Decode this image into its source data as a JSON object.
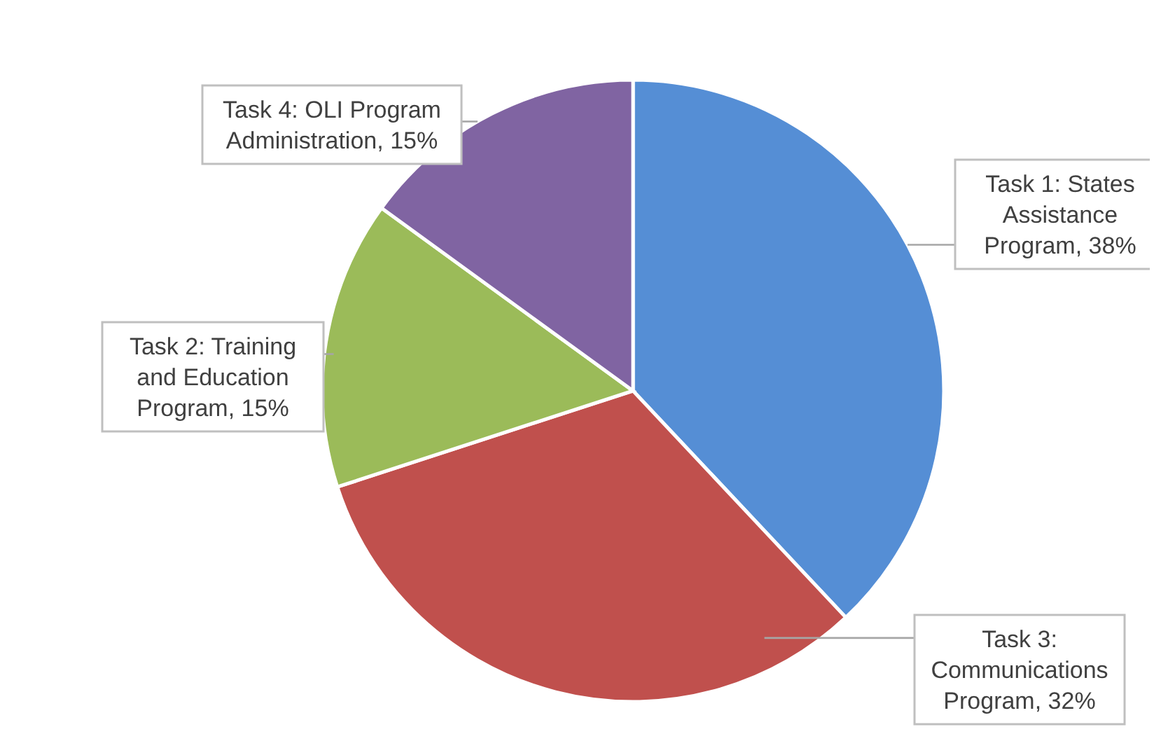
{
  "chart_data": {
    "type": "pie",
    "categories": [
      "Task 1: States Assistance Program",
      "Task 3: Communications Program",
      "Task 2: Training and Education Program",
      "Task 4: OLI Program Administration"
    ],
    "values": [
      38,
      32,
      15,
      15
    ],
    "colors": [
      "#558ed5",
      "#c0504d",
      "#9bbb59",
      "#8064a2"
    ],
    "value_labels": [
      "38%",
      "32%",
      "15%",
      "15%"
    ]
  }
}
